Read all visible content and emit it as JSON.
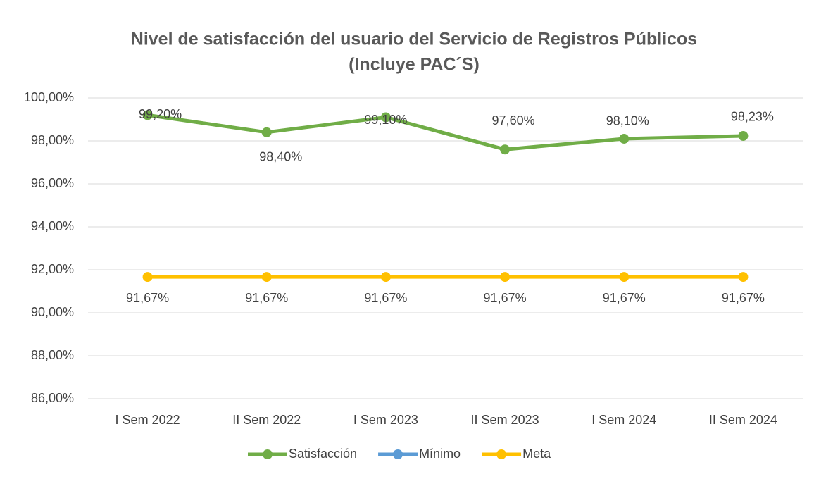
{
  "chart_data": {
    "type": "line",
    "title": [
      "Nivel de satisfacción del usuario del Servicio de Registros Públicos",
      "(Incluye PAC´S)"
    ],
    "categories": [
      "I Sem 2022",
      "II Sem 2022",
      "I Sem 2023",
      "II Sem 2023",
      "I Sem 2024",
      "II Sem 2024"
    ],
    "series": [
      {
        "name": "Satisfacción",
        "color": "#70ad47",
        "values": [
          99.2,
          98.4,
          99.1,
          97.6,
          98.1,
          98.23
        ],
        "value_labels": [
          "99,20%",
          "98,40%",
          "99,10%",
          "97,60%",
          "98,10%",
          "98,23%"
        ]
      },
      {
        "name": "Mínimo",
        "color": "#5b9bd5",
        "values": [
          null,
          null,
          null,
          null,
          null,
          null
        ]
      },
      {
        "name": "Meta",
        "color": "#ffc000",
        "values": [
          91.67,
          91.67,
          91.67,
          91.67,
          91.67,
          91.67
        ],
        "value_labels": [
          "91,67%",
          "91,67%",
          "91,67%",
          "91,67%",
          "91,67%",
          "91,67%"
        ]
      }
    ],
    "ylim": [
      86,
      100
    ],
    "yticks": [
      {
        "value": 86,
        "label": "86,00%"
      },
      {
        "value": 88,
        "label": "88,00%"
      },
      {
        "value": 90,
        "label": "90,00%"
      },
      {
        "value": 92,
        "label": "92,00%"
      },
      {
        "value": 94,
        "label": "94,00%"
      },
      {
        "value": 96,
        "label": "96,00%"
      },
      {
        "value": 98,
        "label": "98,00%"
      },
      {
        "value": 100,
        "label": "100,00%"
      }
    ],
    "grid": true,
    "legend": "bottom"
  }
}
